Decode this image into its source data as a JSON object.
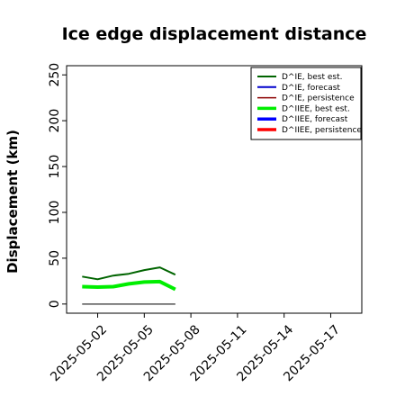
{
  "chart_data": {
    "type": "line",
    "title": "Ice edge displacement distance",
    "xlabel": "",
    "ylabel": "Displacement (km)",
    "ylim": [
      -10,
      260
    ],
    "yticks": [
      0,
      50,
      100,
      150,
      200,
      250
    ],
    "xlim": [
      "2025-04-30",
      "2025-05-19"
    ],
    "xticks": [
      "2025-05-02",
      "2025-05-05",
      "2025-05-08",
      "2025-05-11",
      "2025-05-14",
      "2025-05-17"
    ],
    "highlighted_xtick": "2025-05-08",
    "highlight_color": "#2a8a1a",
    "grid": false,
    "legend_position": "top-right",
    "series": [
      {
        "name": "D^IE, best est.",
        "color": "#006400",
        "width": 2,
        "x": [
          "2025-05-01",
          "2025-05-02",
          "2025-05-03",
          "2025-05-04",
          "2025-05-05",
          "2025-05-06",
          "2025-05-07"
        ],
        "y": [
          30,
          27,
          31,
          33,
          37,
          40,
          32
        ]
      },
      {
        "name": "D^IE, forecast",
        "color": "#0000cc",
        "width": 2,
        "x": [],
        "y": []
      },
      {
        "name": "D^IE, persistence",
        "color": "#8b0000",
        "width": 1.5,
        "x": [],
        "y": []
      },
      {
        "name": "D^IIEE, best est.",
        "color": "#00ee00",
        "width": 4,
        "x": [
          "2025-05-01",
          "2025-05-02",
          "2025-05-03",
          "2025-05-04",
          "2025-05-05",
          "2025-05-06",
          "2025-05-07"
        ],
        "y": [
          19,
          18.5,
          19,
          22,
          24,
          24.5,
          16
        ]
      },
      {
        "name": "D^IIEE, forecast",
        "color": "#0000ff",
        "width": 4,
        "x": [],
        "y": []
      },
      {
        "name": "D^IIEE, persistence",
        "color": "#ff0000",
        "width": 4,
        "x": [],
        "y": []
      }
    ],
    "reference_line": {
      "color": "#555555",
      "width": 1.5,
      "x": [
        "2025-05-01",
        "2025-05-07"
      ],
      "y": [
        0,
        0
      ]
    }
  }
}
